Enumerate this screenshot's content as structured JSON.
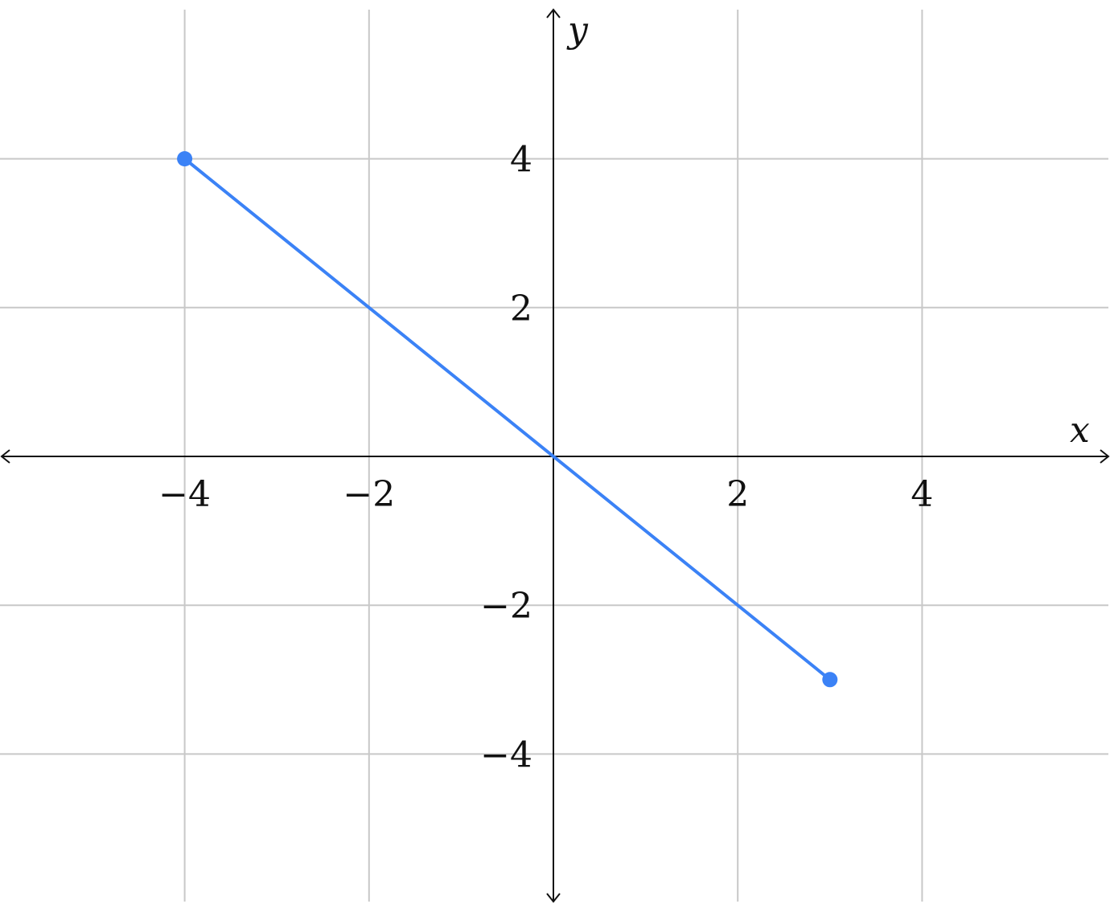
{
  "chart_data": {
    "type": "line",
    "xlabel": "x",
    "ylabel": "y",
    "xlim": [
      -6,
      6
    ],
    "ylim": [
      -6,
      6
    ],
    "grid": true,
    "x_ticks": [
      -4,
      -2,
      2,
      4
    ],
    "y_ticks": [
      -4,
      -2,
      2,
      4
    ],
    "x_tick_labels": [
      "−4",
      "−2",
      "2",
      "4"
    ],
    "y_tick_labels": [
      "−4",
      "−2",
      "2",
      "4"
    ],
    "series": [
      {
        "points": [
          {
            "x": -4,
            "y": 4
          },
          {
            "x": 3,
            "y": -3
          }
        ],
        "color": "#3b82f6",
        "endpoint_markers": true
      }
    ]
  }
}
